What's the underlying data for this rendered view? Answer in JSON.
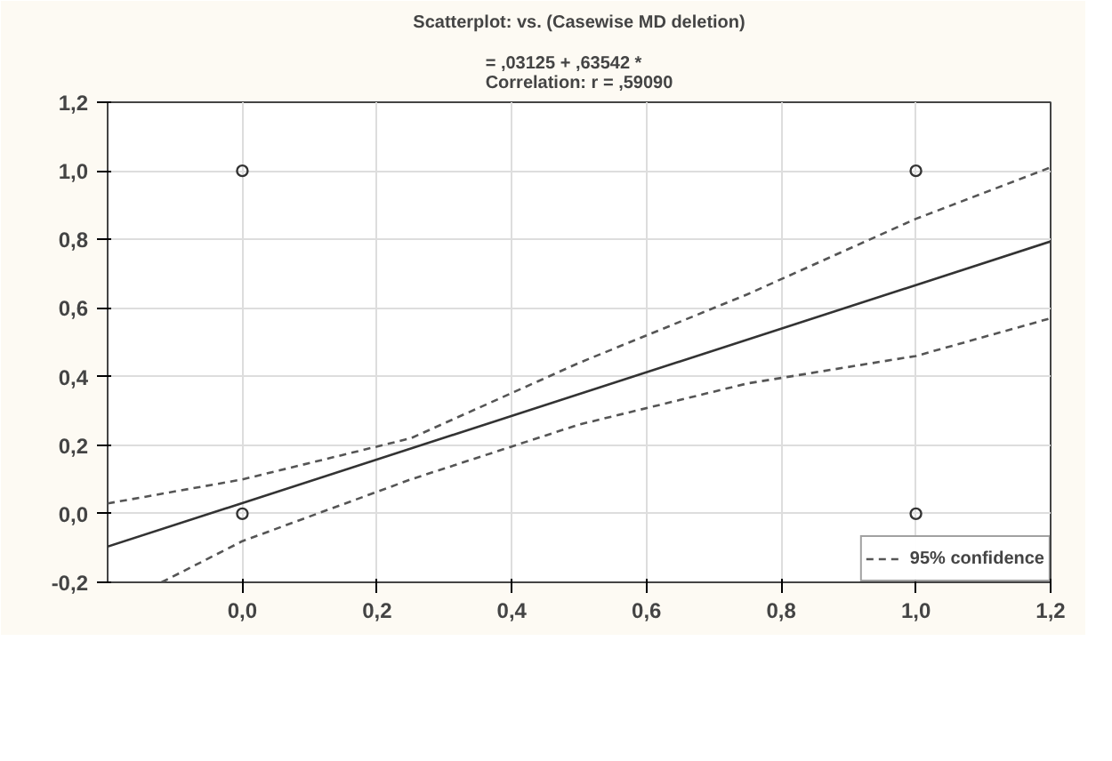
{
  "chart_data": {
    "type": "scatter",
    "title": "Scatterplot: vs. (Casewise MD deletion)",
    "subtitle": "= ,03125 + ,63542 *\nCorrelation: r = ,59090",
    "xlim": [
      -0.2,
      1.2
    ],
    "ylim": [
      -0.2,
      1.2
    ],
    "xticks": [
      {
        "value": 0,
        "label": "0,0"
      },
      {
        "value": 0.2,
        "label": "0,2"
      },
      {
        "value": 0.4,
        "label": "0,4"
      },
      {
        "value": 0.6,
        "label": "0,6"
      },
      {
        "value": 0.8,
        "label": "0,8"
      },
      {
        "value": 1,
        "label": "1,0"
      },
      {
        "value": 1.2,
        "label": "1,2"
      }
    ],
    "yticks": [
      {
        "value": -0.2,
        "label": "-0,2"
      },
      {
        "value": 0,
        "label": "0,0"
      },
      {
        "value": 0.2,
        "label": "0,2"
      },
      {
        "value": 0.4,
        "label": "0,4"
      },
      {
        "value": 0.6,
        "label": "0,6"
      },
      {
        "value": 0.8,
        "label": "0,8"
      },
      {
        "value": 1,
        "label": "1,0"
      },
      {
        "value": 1.2,
        "label": "1,2"
      }
    ],
    "grid": true,
    "legend": "bottom right",
    "series": [
      {
        "marker": "circle",
        "color": "#333333",
        "x": [
          0,
          0,
          1,
          1
        ],
        "values": [
          1,
          0,
          1,
          0
        ]
      },
      {
        "type": "line",
        "line_style": "solid",
        "color": "#333333",
        "x": [
          -0.2,
          1.2
        ],
        "values": [
          -0.096,
          0.794
        ]
      },
      {
        "type": "line",
        "line_style": "dashed",
        "name": "95% confidence",
        "color": "#555555",
        "x": [
          -0.2,
          0,
          0.25,
          0.5,
          0.75,
          1,
          1.2
        ],
        "values": [
          0.03,
          0.1,
          0.22,
          0.44,
          0.64,
          0.86,
          1.01
        ]
      },
      {
        "type": "line",
        "line_style": "dashed",
        "color": "#555555",
        "x": [
          -0.12,
          0,
          0.25,
          0.5,
          0.75,
          1,
          1.2
        ],
        "values": [
          -0.2,
          -0.08,
          0.1,
          0.26,
          0.38,
          0.46,
          0.57
        ]
      }
    ]
  }
}
